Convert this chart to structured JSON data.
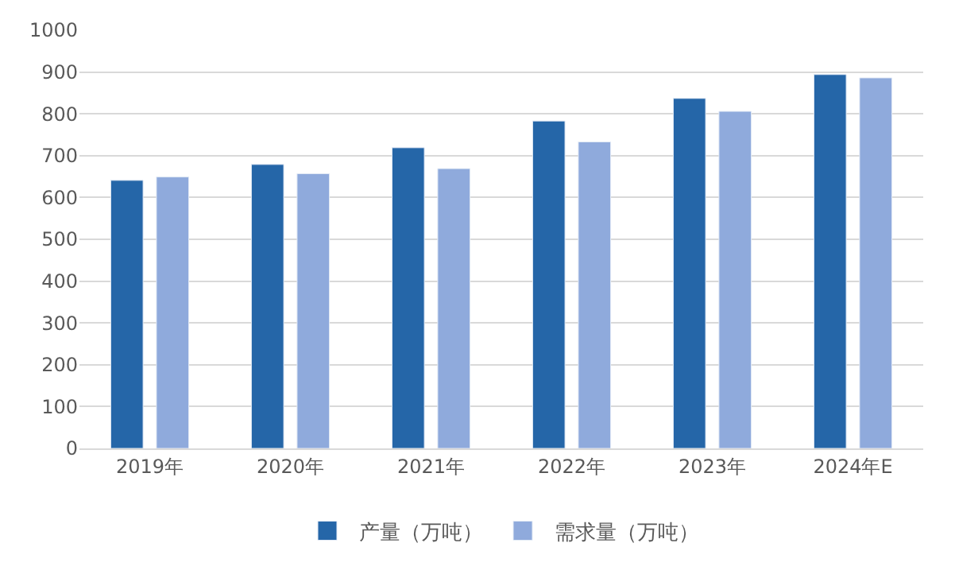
{
  "chart_data": {
    "type": "bar",
    "categories": [
      "2019年",
      "2020年",
      "2021年",
      "2022年",
      "2023年",
      "2024年E"
    ],
    "series": [
      {
        "name": "产量（万吨）",
        "color": "#2566a8",
        "values": [
          641,
          679,
          719,
          783,
          837,
          894
        ]
      },
      {
        "name": "需求量（万吨）",
        "color": "#8faadc",
        "values": [
          649,
          657,
          669,
          733,
          806,
          886
        ]
      }
    ],
    "ylim": [
      0,
      1000
    ],
    "yticks": [
      0,
      100,
      200,
      300,
      400,
      500,
      600,
      700,
      800,
      900,
      1000
    ],
    "grid": "y",
    "legend": "bottom"
  }
}
